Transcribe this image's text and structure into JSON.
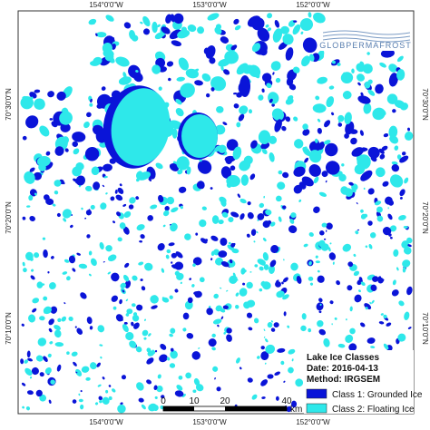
{
  "header": {
    "logo": "GLOBPERMAFROST"
  },
  "grid_labels": {
    "top": [
      "154°0'0\"W",
      "153°0'0\"W",
      "152°0'0\"W"
    ],
    "bottom": [
      "154°0'0\"W",
      "153°0'0\"W",
      "152°0'0\"W"
    ],
    "left": [
      "70°30'0\"N",
      "70°20'0\"N",
      "70°10'0\"N"
    ],
    "right": [
      "70°30'0\"N",
      "70°20'0\"N",
      "70°10'0\"N"
    ]
  },
  "legend": {
    "title": "Lake Ice Classes",
    "date": "Date: 2016-04-13",
    "method": "Method: IRGSEM",
    "items": [
      {
        "label": "Class 1: Grounded Ice",
        "color": "#0a14d8"
      },
      {
        "label": "Class 2: Floating Ice",
        "color": "#2ee8ea"
      }
    ]
  },
  "scale_bar": {
    "ticks": [
      "0",
      "10",
      "20",
      "40"
    ],
    "unit": "km"
  }
}
